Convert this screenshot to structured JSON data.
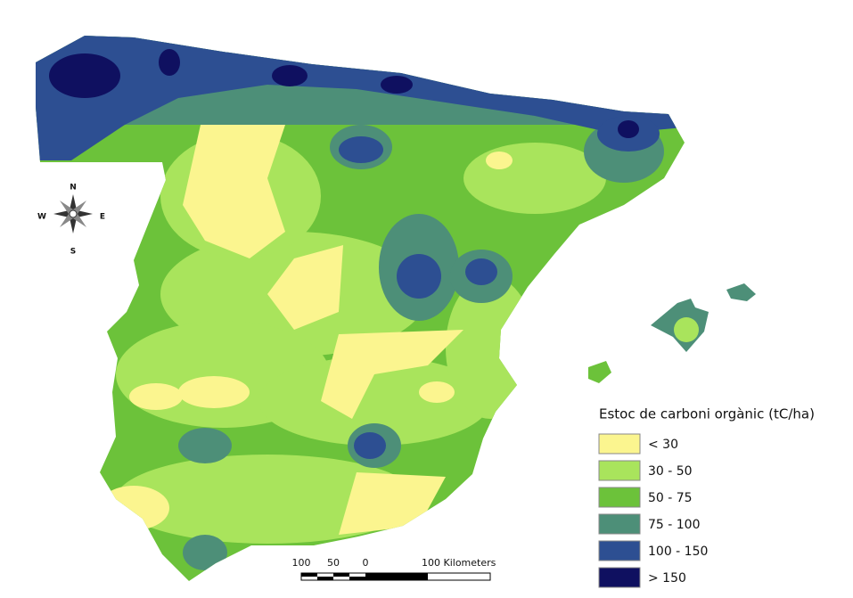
{
  "compass": {
    "north": "N",
    "south": "S",
    "east": "E",
    "west": "W"
  },
  "scale_bar": {
    "labels": [
      "100",
      "50",
      "0",
      "100 Kilometers"
    ]
  },
  "legend": {
    "title": "Estoc de carboni orgànic (tC/ha)",
    "items": [
      {
        "label": "< 30",
        "color": "#fbf58f"
      },
      {
        "label": "30 - 50",
        "color": "#a9e45c"
      },
      {
        "label": "50 - 75",
        "color": "#6cc23a"
      },
      {
        "label": "75 - 100",
        "color": "#4d8f78"
      },
      {
        "label": "100 - 150",
        "color": "#2d4f92"
      },
      {
        "label": "> 150",
        "color": "#0f1060"
      }
    ]
  }
}
